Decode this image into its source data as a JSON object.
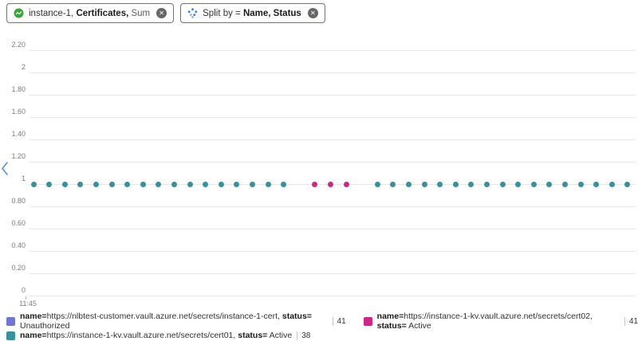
{
  "icons": {
    "close": "✕"
  },
  "pills": {
    "metric": {
      "pre": "instance-1, ",
      "bold": "Certificates,",
      "post": " Sum"
    },
    "split": {
      "pre": "Split by = ",
      "bold": "Name, Status",
      "post": ""
    }
  },
  "chart_data": {
    "type": "scatter",
    "title": "",
    "xlabel": "",
    "ylabel": "",
    "grid": true,
    "legend_position": "bottom",
    "ylim": [
      0,
      2.3
    ],
    "x_start_label": "11:45",
    "y_ticks": [
      {
        "value": 2.2,
        "label": "2.20"
      },
      {
        "value": 2.0,
        "label": "2"
      },
      {
        "value": 1.8,
        "label": "1.80"
      },
      {
        "value": 1.6,
        "label": "1.60"
      },
      {
        "value": 1.4,
        "label": "1.40"
      },
      {
        "value": 1.2,
        "label": "1.20"
      },
      {
        "value": 1.0,
        "label": "1"
      },
      {
        "value": 0.8,
        "label": "0.80"
      },
      {
        "value": 0.6,
        "label": "0.60"
      },
      {
        "value": 0.4,
        "label": "0.40"
      },
      {
        "value": 0.2,
        "label": "0.20"
      },
      {
        "value": 0.0,
        "label": "0"
      }
    ],
    "series": [
      {
        "name": "name=https://nlbtest-customer.vault.azure.net/secrets/instance-1-cert, status= Unauthorized",
        "color": "#7176d5",
        "sum": 41,
        "value": 1,
        "slots": []
      },
      {
        "name": "name=https://instance-1-kv.vault.azure.net/secrets/cert02, status= Active",
        "color": "#cb2786",
        "sum": 41,
        "value": 1,
        "slots": [
          18,
          19,
          20
        ]
      },
      {
        "name": "name=https://instance-1-kv.vault.azure.net/secrets/cert01, status= Active",
        "color": "#38909a",
        "sum": 38,
        "value": 1,
        "slots": [
          0,
          1,
          2,
          3,
          4,
          5,
          6,
          7,
          8,
          9,
          10,
          11,
          12,
          13,
          14,
          15,
          16,
          22,
          23,
          24,
          25,
          26,
          27,
          28,
          29,
          30,
          31,
          32,
          33,
          34,
          35,
          36,
          37,
          38
        ]
      }
    ]
  },
  "legend": {
    "items": [
      {
        "name_key": "name=",
        "url": "https://nlbtest-customer.vault.azure.net/secrets/instance-1-cert, ",
        "status_key": "status=",
        "status_value": " Unauthorized",
        "count": "41",
        "color": "#7176d5"
      },
      {
        "name_key": "name=",
        "url": "https://instance-1-kv.vault.azure.net/secrets/cert02, ",
        "status_key": "status=",
        "status_value": " Active",
        "count": "41",
        "color": "#cb2786"
      },
      {
        "name_key": "name=",
        "url": "https://instance-1-kv.vault.azure.net/secrets/cert01, ",
        "status_key": "status=",
        "status_value": " Active",
        "count": "38",
        "color": "#38909a"
      }
    ]
  }
}
